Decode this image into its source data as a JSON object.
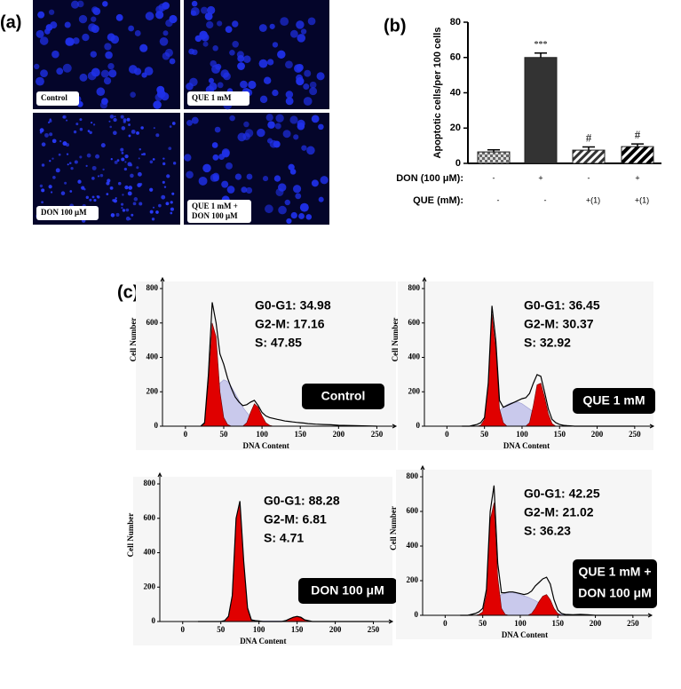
{
  "panel_labels": [
    "(a)",
    "(b)",
    "(c)"
  ],
  "images": [
    {
      "label": [
        "Control"
      ]
    },
    {
      "label": [
        "QUE 1 mM"
      ]
    },
    {
      "label": [
        "DON 100 μM"
      ]
    },
    {
      "label": [
        "QUE 1 mM +",
        "DON 100 μM"
      ]
    }
  ],
  "chart_data": [
    {
      "type": "bar",
      "ylabel": "Apoptotic cells/per 100 cells",
      "categories": [
        null,
        null,
        null,
        null
      ],
      "values": [
        6.5,
        60,
        7.5,
        9.5
      ],
      "errors": [
        1.2,
        2.5,
        1.8,
        1.5
      ],
      "annotations": [
        null,
        "***",
        "#",
        "#"
      ],
      "color": "#333333",
      "ylim": [
        0,
        80
      ],
      "yticks": [
        0,
        20,
        40,
        60,
        80
      ],
      "treatments": [
        {
          "label": "DON (100 μM):",
          "cells": [
            "-",
            "+",
            "-",
            "+"
          ]
        },
        {
          "label": "QUE (mM):",
          "cells": [
            "-",
            "-",
            "+(1)",
            "+(1)"
          ]
        }
      ]
    },
    {
      "type": "area",
      "xlabel": "DNA Content",
      "ylabel": "Cell Number",
      "annotations": [
        "G0-G1: 34.98",
        "G2-M: 17.16",
        "S: 47.85"
      ],
      "label": [
        "Control"
      ],
      "xlim": [
        -30,
        275
      ],
      "ylim": [
        0,
        800
      ],
      "xticks": [
        0,
        50,
        100,
        150,
        200,
        250
      ],
      "yticks": [
        0,
        200,
        400,
        600,
        800
      ],
      "x": [
        20,
        25,
        30,
        35,
        40,
        45,
        50,
        55,
        60,
        65,
        70,
        75,
        80,
        85,
        90,
        95,
        100,
        105,
        110,
        115,
        120,
        125,
        130,
        135,
        140,
        145,
        150,
        155,
        160,
        170,
        180,
        190,
        200,
        220,
        250
      ],
      "series": [
        {
          "color": "#c9c9ec",
          "fill": true,
          "values": [
            0,
            5,
            40,
            120,
            200,
            250,
            270,
            260,
            230,
            190,
            150,
            110,
            80,
            55,
            35,
            20,
            10,
            5,
            0,
            0,
            0,
            0,
            0,
            0,
            0,
            0,
            0,
            0,
            0,
            0,
            0,
            0,
            0,
            0,
            0
          ]
        },
        {
          "color": "#e00000",
          "fill": true,
          "values": [
            0,
            15,
            250,
            600,
            520,
            200,
            50,
            10,
            0,
            0,
            0,
            0,
            20,
            80,
            130,
            110,
            60,
            20,
            5,
            0,
            0,
            0,
            0,
            0,
            0,
            0,
            0,
            0,
            0,
            0,
            0,
            0,
            0,
            0,
            0
          ]
        },
        {
          "color": "#000000",
          "fill": false,
          "values": [
            0,
            20,
            300,
            720,
            600,
            420,
            360,
            280,
            220,
            170,
            140,
            120,
            125,
            140,
            150,
            120,
            80,
            60,
            50,
            45,
            40,
            35,
            30,
            28,
            25,
            22,
            20,
            18,
            15,
            12,
            10,
            8,
            5,
            3,
            0
          ]
        }
      ]
    },
    {
      "type": "area",
      "xlabel": "DNA Content",
      "ylabel": "Cell Number",
      "annotations": [
        "G0-G1: 36.45",
        "G2-M: 30.37",
        "S: 32.92"
      ],
      "label": [
        "QUE 1 mM"
      ],
      "xlim": [
        -30,
        275
      ],
      "ylim": [
        0,
        800
      ],
      "xticks": [
        0,
        50,
        100,
        150,
        200,
        250
      ],
      "yticks": [
        0,
        200,
        400,
        600,
        800
      ],
      "x": [
        20,
        25,
        30,
        35,
        40,
        45,
        50,
        55,
        60,
        65,
        70,
        75,
        80,
        85,
        90,
        95,
        100,
        105,
        110,
        115,
        120,
        125,
        130,
        135,
        140,
        145,
        150,
        155,
        160,
        170,
        180,
        190,
        200,
        220,
        250
      ],
      "series": [
        {
          "color": "#c9c9ec",
          "fill": true,
          "values": [
            0,
            0,
            0,
            0,
            0,
            5,
            15,
            30,
            50,
            70,
            90,
            110,
            125,
            135,
            140,
            140,
            130,
            115,
            100,
            80,
            60,
            40,
            20,
            10,
            0,
            0,
            0,
            0,
            0,
            0,
            0,
            0,
            0,
            0,
            0
          ]
        },
        {
          "color": "#e00000",
          "fill": true,
          "values": [
            0,
            0,
            0,
            0,
            0,
            5,
            40,
            230,
            650,
            450,
            100,
            20,
            0,
            0,
            0,
            0,
            0,
            0,
            20,
            120,
            240,
            250,
            170,
            70,
            15,
            0,
            0,
            0,
            0,
            0,
            0,
            0,
            0,
            0,
            0
          ]
        },
        {
          "color": "#000000",
          "fill": false,
          "values": [
            0,
            0,
            0,
            5,
            10,
            20,
            50,
            250,
            700,
            500,
            150,
            110,
            120,
            130,
            140,
            150,
            160,
            165,
            190,
            250,
            300,
            290,
            200,
            100,
            40,
            20,
            10,
            5,
            3,
            0,
            0,
            0,
            0,
            0,
            0
          ]
        }
      ]
    },
    {
      "type": "area",
      "xlabel": "DNA Content",
      "ylabel": "Cell Number",
      "annotations": [
        "G0-G1: 88.28",
        "G2-M: 6.81",
        "S: 4.71"
      ],
      "label": [
        "DON 100 μM"
      ],
      "xlim": [
        -30,
        275
      ],
      "ylim": [
        0,
        800
      ],
      "xticks": [
        0,
        50,
        100,
        150,
        200,
        250
      ],
      "yticks": [
        0,
        200,
        400,
        600,
        800
      ],
      "x": [
        20,
        25,
        30,
        35,
        40,
        45,
        50,
        55,
        60,
        65,
        70,
        75,
        80,
        85,
        90,
        95,
        100,
        105,
        110,
        115,
        120,
        125,
        130,
        135,
        140,
        145,
        150,
        155,
        160,
        170,
        180,
        190,
        200,
        220,
        250
      ],
      "series": [
        {
          "color": "#c9c9ec",
          "fill": true,
          "values": [
            0,
            0,
            0,
            0,
            0,
            0,
            0,
            0,
            0,
            2,
            3,
            4,
            4,
            4,
            4,
            4,
            3,
            3,
            3,
            3,
            3,
            3,
            3,
            3,
            2,
            2,
            2,
            0,
            0,
            0,
            0,
            0,
            0,
            0,
            0
          ]
        },
        {
          "color": "#e00000",
          "fill": true,
          "values": [
            0,
            0,
            0,
            0,
            0,
            0,
            0,
            5,
            30,
            150,
            600,
            690,
            340,
            70,
            5,
            0,
            0,
            0,
            0,
            0,
            0,
            0,
            0,
            5,
            15,
            25,
            28,
            22,
            8,
            0,
            0,
            0,
            0,
            0,
            0
          ]
        },
        {
          "color": "#000000",
          "fill": false,
          "values": [
            0,
            0,
            0,
            0,
            0,
            0,
            0,
            5,
            30,
            150,
            600,
            700,
            350,
            80,
            10,
            5,
            3,
            0,
            0,
            0,
            0,
            0,
            0,
            5,
            15,
            25,
            30,
            25,
            10,
            0,
            0,
            0,
            0,
            0,
            0
          ]
        }
      ]
    },
    {
      "type": "area",
      "xlabel": "DNA Content",
      "ylabel": "Cell Number",
      "annotations": [
        "G0-G1: 42.25",
        "G2-M: 21.02",
        "S: 36.23"
      ],
      "label": [
        "QUE 1 mM +",
        "DON 100 μM"
      ],
      "xlim": [
        -30,
        275
      ],
      "ylim": [
        0,
        800
      ],
      "xticks": [
        0,
        50,
        100,
        150,
        200,
        250
      ],
      "yticks": [
        0,
        200,
        400,
        600,
        800
      ],
      "x": [
        20,
        25,
        30,
        35,
        40,
        45,
        50,
        55,
        60,
        65,
        70,
        75,
        80,
        85,
        90,
        95,
        100,
        105,
        110,
        115,
        120,
        125,
        130,
        135,
        140,
        145,
        150,
        155,
        160,
        170,
        180,
        190,
        200,
        220,
        250
      ],
      "series": [
        {
          "color": "#c9c9ec",
          "fill": true,
          "values": [
            0,
            0,
            0,
            0,
            0,
            5,
            15,
            30,
            60,
            85,
            105,
            120,
            128,
            130,
            130,
            128,
            120,
            112,
            105,
            95,
            85,
            72,
            60,
            48,
            35,
            22,
            12,
            5,
            0,
            0,
            0,
            0,
            0,
            0,
            0
          ]
        },
        {
          "color": "#e00000",
          "fill": true,
          "values": [
            0,
            0,
            0,
            0,
            0,
            5,
            20,
            120,
            550,
            650,
            220,
            40,
            5,
            0,
            0,
            0,
            0,
            0,
            0,
            10,
            40,
            80,
            110,
            120,
            90,
            40,
            10,
            0,
            0,
            0,
            0,
            0,
            0,
            0,
            0
          ]
        },
        {
          "color": "#000000",
          "fill": false,
          "values": [
            0,
            0,
            0,
            5,
            10,
            20,
            40,
            150,
            600,
            750,
            300,
            130,
            130,
            135,
            135,
            130,
            125,
            120,
            125,
            140,
            170,
            190,
            210,
            220,
            180,
            90,
            30,
            10,
            5,
            3,
            5,
            3,
            0,
            0,
            0
          ]
        }
      ]
    }
  ]
}
